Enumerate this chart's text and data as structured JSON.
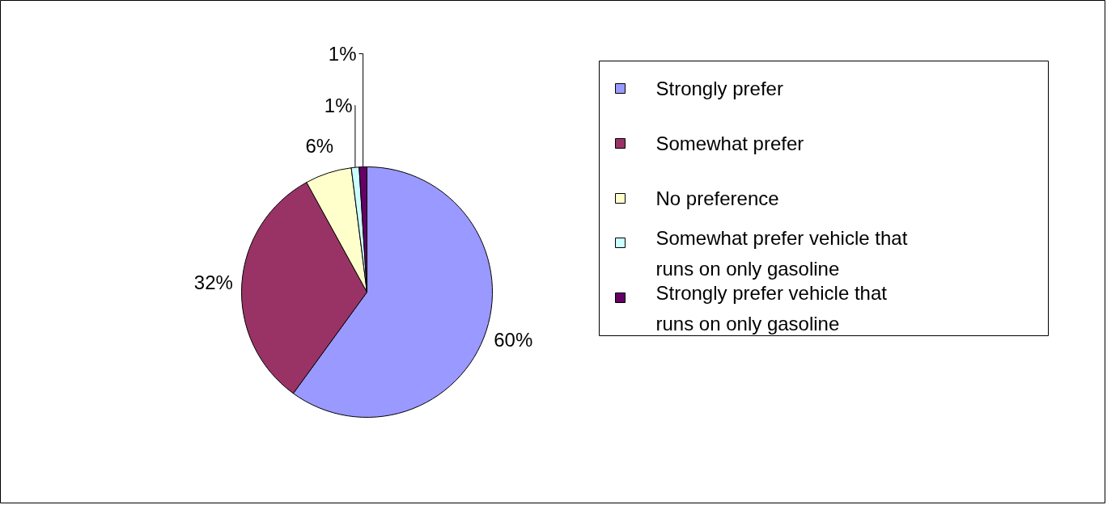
{
  "chart_data": {
    "type": "pie",
    "categories": [
      "Strongly prefer",
      "Somewhat prefer",
      "No preference",
      "Somewhat prefer vehicle that runs on only gasoline",
      "Strongly prefer vehicle that runs on only gasoline"
    ],
    "values": [
      60,
      32,
      6,
      1,
      1
    ],
    "colors": [
      "#9999ff",
      "#993366",
      "#ffffcc",
      "#ccffff",
      "#660066"
    ],
    "value_labels": [
      "60%",
      "32%",
      "6%",
      "1%",
      "1%"
    ],
    "legend": "right"
  }
}
